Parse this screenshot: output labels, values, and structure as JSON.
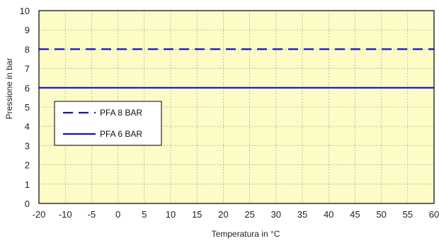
{
  "chart_data": {
    "type": "line",
    "title": "",
    "xlabel": "Temperatura in °C",
    "ylabel": "Pressione in bar",
    "xlim": [
      -20,
      60
    ],
    "ylim": [
      0,
      10
    ],
    "xticks": [
      "-20",
      "-10",
      "-5",
      "0",
      "5",
      "10",
      "15",
      "20",
      "25",
      "30",
      "35",
      "40",
      "45",
      "50",
      "55",
      "60"
    ],
    "yticks": [
      "0",
      "1",
      "2",
      "3",
      "4",
      "5",
      "6",
      "7",
      "8",
      "9",
      "10"
    ],
    "grid": true,
    "legend_position": "left",
    "plot_background": "#FDFBC6",
    "series": [
      {
        "name": "PFA 8 BAR",
        "x": [
          -20,
          60
        ],
        "y": [
          8,
          8
        ],
        "style": "dashed",
        "color": "#1010C8"
      },
      {
        "name": "PFA 6 BAR",
        "x": [
          -20,
          60
        ],
        "y": [
          6,
          6
        ],
        "style": "solid",
        "color": "#1010C8"
      }
    ]
  }
}
